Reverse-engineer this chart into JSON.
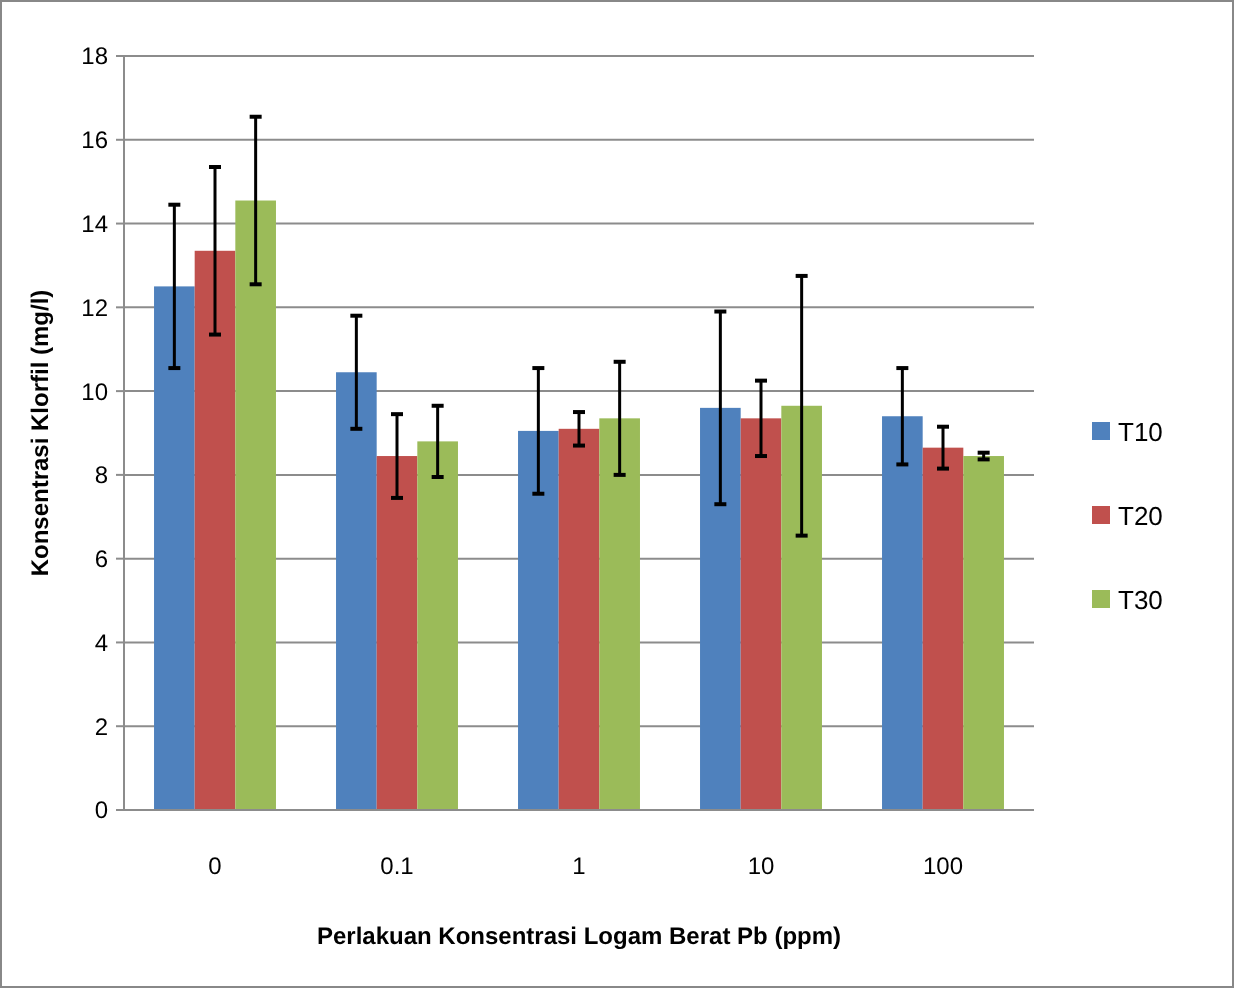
{
  "chart_data": {
    "type": "bar",
    "xlabel": "Perlakuan Konsentrasi Logam Berat Pb (ppm)",
    "ylabel": "Konsentrasi Klorfil (mg/l)",
    "categories": [
      "0",
      "0.1",
      "1",
      "10",
      "100"
    ],
    "series": [
      {
        "name": "T10",
        "color": "#4f81bd",
        "values": [
          12.5,
          10.45,
          9.05,
          9.6,
          9.4
        ],
        "errors": [
          1.95,
          1.35,
          1.5,
          2.3,
          1.15
        ]
      },
      {
        "name": "T20",
        "color": "#c0504d",
        "values": [
          13.35,
          8.45,
          9.1,
          9.35,
          8.65
        ],
        "errors": [
          2.0,
          1.0,
          0.4,
          0.9,
          0.5
        ]
      },
      {
        "name": "T30",
        "color": "#9bbb59",
        "values": [
          14.55,
          8.8,
          9.35,
          9.65,
          8.45
        ],
        "errors": [
          2.0,
          0.85,
          1.35,
          3.1,
          0.08
        ]
      }
    ],
    "ylim": [
      0,
      18
    ],
    "yticks": [
      0,
      2,
      4,
      6,
      8,
      10,
      12,
      14,
      16,
      18
    ],
    "grid": "y",
    "legend": "right"
  }
}
